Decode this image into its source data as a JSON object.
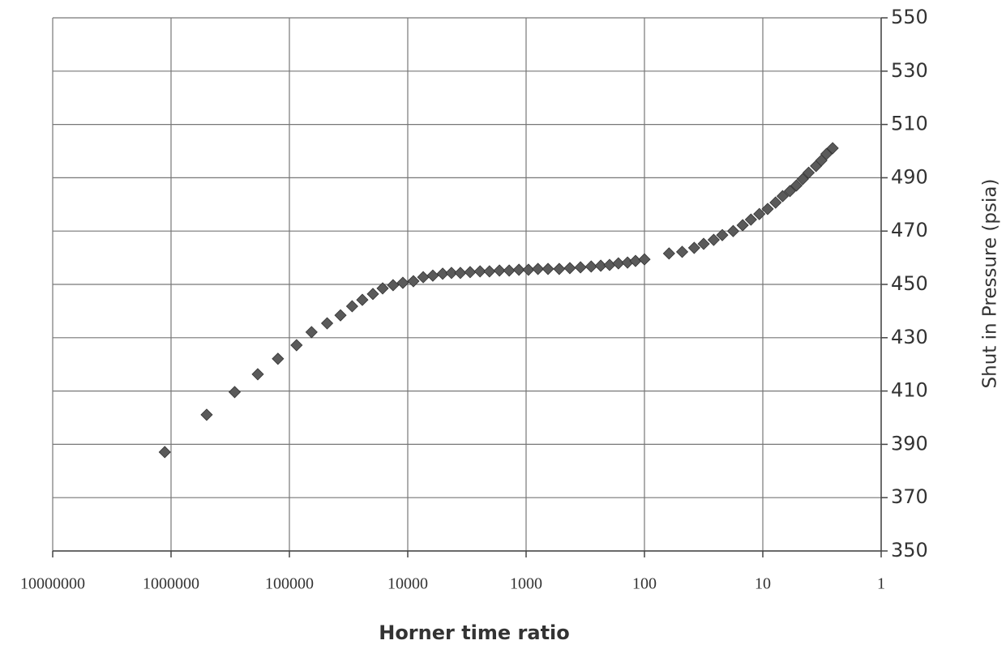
{
  "chart_data": {
    "type": "scatter",
    "x_label": "Horner time ratio",
    "y_label": "Shut in Pressure (psia)",
    "x_log": true,
    "y_axis_side": "right",
    "grid": true,
    "marker": "diamond",
    "xlim": [
      10000000,
      1
    ],
    "xticks": [
      10000000,
      1000000,
      100000,
      10000,
      1000,
      100,
      10,
      1
    ],
    "ylim": [
      350,
      550
    ],
    "yticks": [
      350,
      370,
      390,
      410,
      430,
      450,
      470,
      490,
      510,
      530,
      550
    ],
    "series": [
      {
        "color": "#5a5a5a",
        "x": [
          1130000,
          500000,
          290000,
          185000,
          125000,
          87000,
          65000,
          48000,
          37000,
          29500,
          24200,
          19700,
          16300,
          13300,
          11000,
          8960,
          7400,
          6140,
          5070,
          4270,
          3590,
          2970,
          2450,
          2040,
          1680,
          1390,
          1150,
          955,
          794,
          653,
          525,
          427,
          347,
          282,
          234,
          197,
          166,
          139,
          119,
          100,
          62,
          48,
          38,
          31.6,
          26,
          22,
          17.8,
          14.8,
          12.6,
          10.7,
          9.1,
          7.8,
          6.8,
          5.9,
          5.2,
          4.6,
          4.1,
          3.55,
          3.2,
          2.9,
          2.57
        ],
        "values": [
          387.1,
          401.1,
          409.6,
          416.3,
          422.1,
          427.2,
          432.1,
          435.4,
          438.4,
          441.8,
          444.2,
          446.4,
          448.5,
          449.7,
          450.6,
          451.2,
          452.7,
          453.3,
          454.0,
          454.3,
          454.3,
          454.6,
          454.9,
          454.9,
          455.2,
          455.2,
          455.5,
          455.5,
          455.8,
          455.8,
          455.8,
          456.1,
          456.4,
          456.7,
          457.0,
          457.3,
          457.9,
          458.2,
          458.8,
          459.4,
          461.6,
          462.2,
          463.7,
          465.2,
          466.7,
          468.5,
          470.0,
          472.2,
          474.3,
          476.4,
          478.3,
          480.7,
          483.1,
          485.0,
          487.1,
          489.5,
          491.9,
          494.4,
          496.5,
          498.9,
          501.1
        ]
      }
    ]
  }
}
